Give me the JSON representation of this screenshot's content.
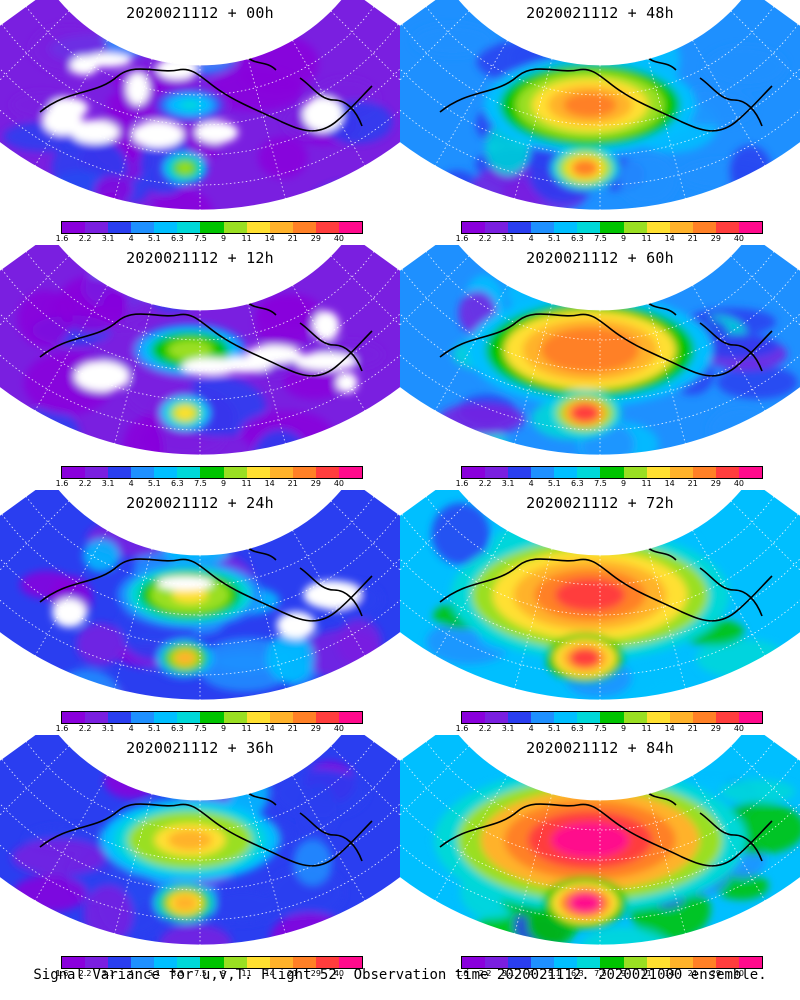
{
  "panels": [
    {
      "id": "p00",
      "title": "2020021112 + 00h",
      "lead_hours": 0
    },
    {
      "id": "p48",
      "title": "2020021112 + 48h",
      "lead_hours": 48
    },
    {
      "id": "p12",
      "title": "2020021112 + 12h",
      "lead_hours": 12
    },
    {
      "id": "p60",
      "title": "2020021112 + 60h",
      "lead_hours": 60
    },
    {
      "id": "p24",
      "title": "2020021112 + 24h",
      "lead_hours": 24
    },
    {
      "id": "p72",
      "title": "2020021112 + 72h",
      "lead_hours": 72
    },
    {
      "id": "p36",
      "title": "2020021112 + 36h",
      "lead_hours": 36
    },
    {
      "id": "p84",
      "title": "2020021112 + 84h",
      "lead_hours": 84
    }
  ],
  "colorbar": {
    "labels": [
      "1.6",
      "2.2",
      "3.1",
      "4",
      "5.1",
      "6.3",
      "7.5",
      "9",
      "11",
      "14",
      "21",
      "29",
      "40"
    ],
    "colors": [
      "#8a00dc",
      "#7a1fe0",
      "#2a3ef0",
      "#1e90ff",
      "#00bfff",
      "#00d8d8",
      "#00c400",
      "#9adf22",
      "#ffe030",
      "#ffb22a",
      "#ff8026",
      "#ff3d3d",
      "#ff0a8c"
    ]
  },
  "footer": {
    "text": "Signal Variance for u,v,T. Flight 52. Observation time 2020021112. 2020021000 ensemble."
  }
}
